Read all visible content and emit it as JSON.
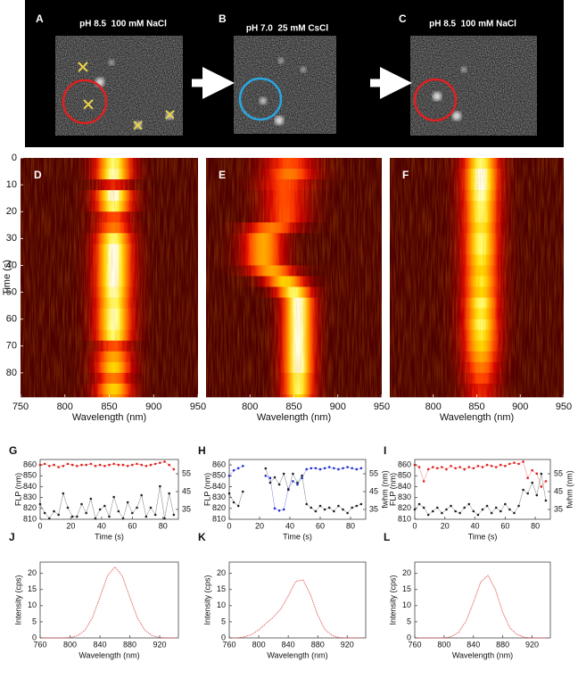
{
  "images": [
    {
      "panel": "A",
      "caption": "pH 8.5  100 mM NaCl"
    },
    {
      "panel": "B",
      "caption": "pH 7.0  25 mM CsCl"
    },
    {
      "panel": "C",
      "caption": "pH 8.5  100 mM NaCl"
    }
  ],
  "chart_data": [
    {
      "type": "heatmap",
      "panel": "D",
      "x_label": "Wavelength (nm)",
      "y_label": "Time (s)",
      "y_inverted": true,
      "xlim": [
        750,
        950
      ],
      "ylim": [
        0,
        89
      ],
      "xticks": [
        750,
        800,
        850,
        900,
        950
      ],
      "yticks": [
        0,
        10,
        20,
        30,
        40,
        50,
        60,
        70,
        80
      ],
      "rows": [
        0,
        4,
        8,
        12,
        16,
        20,
        24,
        28,
        32,
        36,
        40,
        44,
        48,
        52,
        56,
        60,
        64,
        68,
        72,
        76,
        80,
        84,
        88
      ],
      "center": [
        855,
        855,
        855,
        855,
        855,
        855,
        855,
        855,
        855,
        855,
        855,
        855,
        855,
        855,
        855,
        855,
        855,
        855,
        855,
        855,
        855,
        855,
        855
      ],
      "fwhm": [
        35,
        35,
        35,
        35,
        35,
        35,
        35,
        35,
        35,
        35,
        35,
        35,
        35,
        35,
        35,
        35,
        35,
        35,
        35,
        35,
        35,
        35,
        35
      ],
      "intensity": [
        0.9,
        0.95,
        0.4,
        1,
        0.9,
        0.5,
        0.6,
        0.9,
        1,
        1,
        1,
        1,
        0.95,
        0.9,
        0.95,
        0.95,
        0.9,
        0.5,
        0.7,
        0.8,
        0.6,
        0.8,
        0.7
      ]
    },
    {
      "type": "heatmap",
      "panel": "E",
      "x_label": "Wavelength (nm)",
      "y_inverted": true,
      "xlim": [
        750,
        950
      ],
      "ylim": [
        0,
        89
      ],
      "xticks": [
        800,
        850,
        900,
        950
      ],
      "rows": [
        0,
        4,
        8,
        12,
        16,
        20,
        24,
        28,
        32,
        36,
        40,
        44,
        48,
        52,
        56,
        60,
        64,
        68,
        72,
        76,
        80,
        84,
        88
      ],
      "center": [
        845,
        845,
        840,
        840,
        840,
        840,
        825,
        815,
        815,
        815,
        825,
        840,
        850,
        855,
        855,
        855,
        855,
        855,
        855,
        855,
        855,
        855,
        855
      ],
      "fwhm": [
        50,
        50,
        50,
        45,
        45,
        45,
        50,
        40,
        40,
        40,
        45,
        40,
        35,
        30,
        30,
        30,
        30,
        30,
        30,
        30,
        30,
        30,
        30
      ],
      "intensity": [
        0.5,
        0.6,
        0.5,
        0.5,
        0.5,
        0.5,
        0.6,
        0.7,
        0.7,
        0.7,
        0.7,
        0.8,
        0.9,
        1,
        1,
        1,
        1,
        1,
        1,
        1,
        0.9,
        0.9,
        0.8
      ]
    },
    {
      "type": "heatmap",
      "panel": "F",
      "x_label": "Wavelength (nm)",
      "y_inverted": true,
      "xlim": [
        750,
        950
      ],
      "ylim": [
        0,
        89
      ],
      "xticks": [
        800,
        850,
        900,
        950
      ],
      "rows": [
        0,
        4,
        8,
        12,
        16,
        20,
        24,
        28,
        32,
        36,
        40,
        44,
        48,
        52,
        56,
        60,
        64,
        68,
        72,
        76,
        80,
        84,
        88
      ],
      "center": [
        855,
        855,
        855,
        855,
        855,
        855,
        855,
        855,
        855,
        855,
        855,
        855,
        855,
        855,
        855,
        855,
        855,
        855,
        855,
        855,
        855,
        855,
        855
      ],
      "fwhm": [
        35,
        35,
        35,
        35,
        35,
        35,
        35,
        35,
        35,
        35,
        35,
        35,
        35,
        35,
        35,
        35,
        35,
        35,
        35,
        35,
        35,
        35,
        35
      ],
      "intensity": [
        0.9,
        1,
        1,
        0.95,
        0.9,
        0.9,
        0.85,
        0.9,
        0.9,
        0.85,
        0.8,
        0.85,
        0.8,
        0.9,
        0.85,
        0.9,
        0.85,
        0.8,
        0.7,
        0.6,
        0.5,
        0.4,
        0.4
      ]
    },
    {
      "type": "scatter",
      "panel": "G",
      "x_label": "Time (s)",
      "y_label": "FLP (nm)",
      "xlim": [
        0,
        90
      ],
      "ylim": [
        810,
        865
      ],
      "y2lim": [
        29.5,
        63
      ],
      "xticks": [
        0,
        20,
        40,
        60,
        80
      ],
      "yticks": [
        810,
        820,
        830,
        840,
        850,
        860
      ],
      "y2ticks": [
        35,
        45,
        55
      ],
      "x": [
        0,
        3,
        6,
        9,
        12,
        15,
        18,
        21,
        24,
        27,
        30,
        33,
        36,
        39,
        42,
        45,
        48,
        51,
        54,
        57,
        60,
        63,
        66,
        69,
        72,
        75,
        78,
        81,
        84,
        87
      ],
      "series": [
        {
          "color": "#e0201c",
          "values": [
            860,
            861,
            859,
            860,
            858,
            859,
            861,
            860,
            859,
            860,
            860,
            861,
            859,
            860,
            859,
            860,
            861,
            860,
            860,
            859,
            860,
            861,
            860,
            859,
            860,
            861,
            862,
            863,
            860,
            856
          ]
        },
        {
          "color": "#222222",
          "axis": "y2",
          "values": [
            38,
            33,
            30,
            34,
            32,
            44,
            36,
            31,
            31,
            38,
            33,
            41,
            30,
            35,
            37,
            31,
            42,
            34,
            30,
            39,
            33,
            36,
            43,
            31,
            36,
            32,
            48,
            30,
            44,
            32
          ]
        }
      ]
    },
    {
      "type": "scatter",
      "panel": "H",
      "x_label": "Time (s)",
      "y_label": "FLP (nm)",
      "y2_label": "fwhm (nm)",
      "xlim": [
        0,
        90
      ],
      "ylim": [
        810,
        865
      ],
      "y2lim": [
        29.5,
        63
      ],
      "xticks": [
        0,
        20,
        40,
        60,
        80
      ],
      "yticks": [
        810,
        820,
        830,
        840,
        850,
        860
      ],
      "y2ticks": [
        35,
        45,
        55
      ],
      "x": [
        0,
        3,
        6,
        9,
        12,
        15,
        18,
        21,
        24,
        27,
        30,
        33,
        36,
        39,
        42,
        45,
        48,
        51,
        54,
        57,
        60,
        63,
        66,
        69,
        72,
        75,
        78,
        81,
        84,
        87
      ],
      "series": [
        {
          "color": "#1f2fd0",
          "values": [
            850,
            855,
            857,
            859,
            null,
            null,
            null,
            null,
            850,
            848,
            820,
            818,
            819,
            838,
            845,
            842,
            848,
            856,
            857,
            857,
            856,
            857,
            858,
            857,
            856,
            857,
            858,
            857,
            856,
            857
          ]
        },
        {
          "color": "#222222",
          "axis": "y2",
          "values": [
            44,
            39,
            37,
            45,
            null,
            null,
            null,
            null,
            58,
            50,
            53,
            49,
            55,
            46,
            55,
            50,
            54,
            38,
            36,
            34,
            37,
            35,
            36,
            34,
            37,
            35,
            33,
            36,
            37,
            38
          ]
        }
      ]
    },
    {
      "type": "scatter",
      "panel": "I",
      "x_label": "Time (s)",
      "y_label": "FLP (nm)",
      "y2_label": "fwhm (nm)",
      "xlim": [
        0,
        90
      ],
      "ylim": [
        810,
        865
      ],
      "y2lim": [
        29.5,
        63
      ],
      "xticks": [
        0,
        20,
        40,
        60,
        80
      ],
      "yticks": [
        810,
        820,
        830,
        840,
        850,
        860
      ],
      "y2ticks": [
        35,
        45,
        55
      ],
      "x": [
        0,
        3,
        6,
        9,
        12,
        15,
        18,
        21,
        24,
        27,
        30,
        33,
        36,
        39,
        42,
        45,
        48,
        51,
        54,
        57,
        60,
        63,
        66,
        69,
        72,
        75,
        78,
        81,
        84,
        87
      ],
      "series": [
        {
          "color": "#e0201c",
          "values": [
            860,
            858,
            845,
            856,
            858,
            857,
            858,
            856,
            859,
            857,
            858,
            856,
            858,
            857,
            859,
            858,
            860,
            859,
            858,
            860,
            859,
            861,
            862,
            861,
            863,
            848,
            855,
            852,
            840,
            845
          ]
        },
        {
          "color": "#222222",
          "axis": "y2",
          "values": [
            35,
            38,
            36,
            32,
            34,
            36,
            33,
            35,
            37,
            34,
            33,
            36,
            38,
            34,
            32,
            35,
            37,
            33,
            36,
            34,
            38,
            35,
            33,
            37,
            46,
            44,
            50,
            43,
            55,
            40
          ]
        }
      ]
    },
    {
      "type": "line",
      "panel": "J",
      "x_label": "Wavelength (nm)",
      "y_label": "Intensity (cps)",
      "color": "#e05050",
      "xlim": [
        760,
        945
      ],
      "ylim": [
        0,
        23.5
      ],
      "xticks": [
        760,
        800,
        840,
        880,
        920
      ],
      "yticks": [
        0,
        5,
        10,
        15,
        20
      ],
      "x": [
        760,
        770,
        780,
        790,
        800,
        810,
        820,
        830,
        840,
        850,
        860,
        870,
        880,
        890,
        900,
        910,
        920,
        930,
        940
      ],
      "values": [
        0,
        0,
        0,
        0,
        0.1,
        0.7,
        2.4,
        6.3,
        12.6,
        19.2,
        22,
        19.2,
        12.6,
        6.3,
        2.4,
        0.7,
        0.1,
        0,
        0
      ]
    },
    {
      "type": "line",
      "panel": "K",
      "x_label": "Wavelength (nm)",
      "y_label": "Intensity (cps)",
      "color": "#e05050",
      "xlim": [
        760,
        945
      ],
      "ylim": [
        0,
        23.5
      ],
      "xticks": [
        760,
        800,
        840,
        880,
        920
      ],
      "yticks": [
        0,
        5,
        10,
        15,
        20
      ],
      "x": [
        760,
        770,
        780,
        790,
        800,
        810,
        820,
        830,
        840,
        850,
        860,
        870,
        880,
        890,
        900,
        910,
        920,
        930,
        940
      ],
      "values": [
        0,
        0,
        0.3,
        1,
        2.5,
        4.5,
        6.5,
        9,
        13,
        17.5,
        18,
        13.5,
        7,
        2.5,
        0.7,
        0.1,
        0,
        0,
        0
      ]
    },
    {
      "type": "line",
      "panel": "L",
      "x_label": "Wavelength (nm)",
      "y_label": "Intensity (cps)",
      "color": "#e05050",
      "xlim": [
        760,
        945
      ],
      "ylim": [
        0,
        23.5
      ],
      "xticks": [
        760,
        800,
        840,
        880,
        920
      ],
      "yticks": [
        0,
        5,
        10,
        15,
        20
      ],
      "x": [
        760,
        770,
        780,
        790,
        800,
        810,
        820,
        830,
        840,
        850,
        860,
        870,
        880,
        890,
        900,
        910,
        920,
        930,
        940
      ],
      "values": [
        0,
        0,
        0,
        0,
        0,
        0.4,
        1.8,
        5.2,
        11,
        17.3,
        19.4,
        15,
        8,
        3,
        1,
        0.2,
        0,
        0,
        0
      ]
    }
  ]
}
